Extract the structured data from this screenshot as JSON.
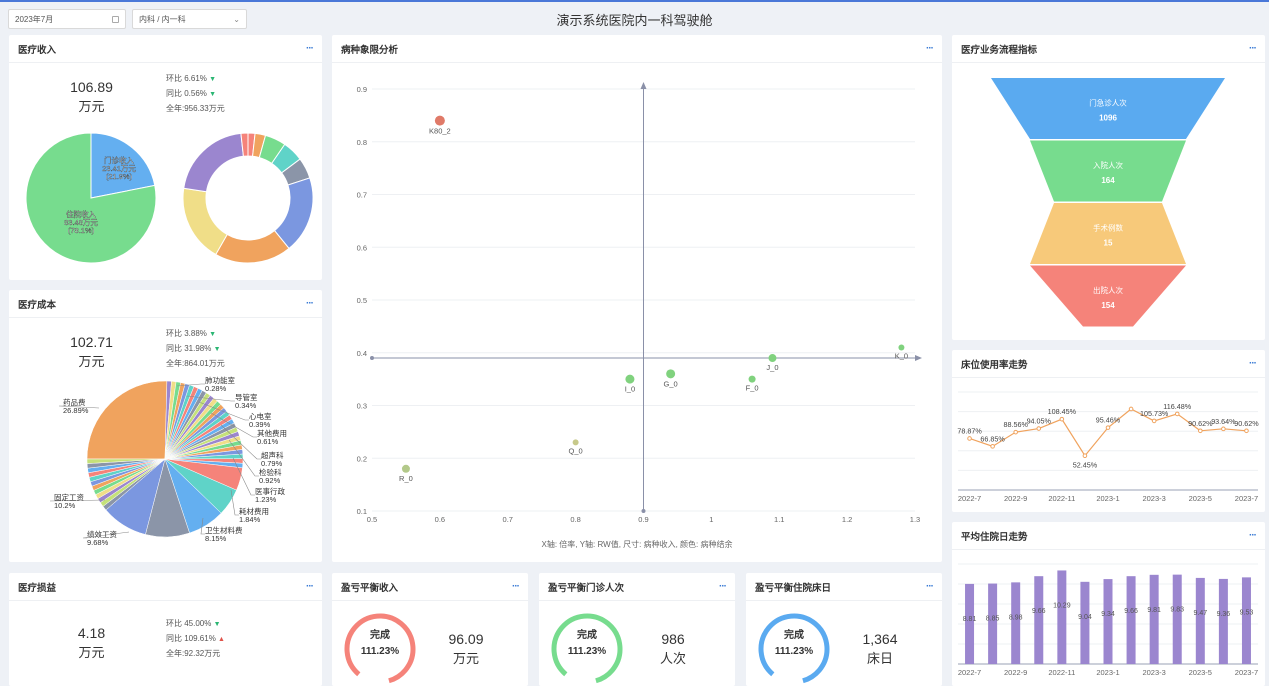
{
  "header": {
    "date": "2023年7月",
    "dept": "内科 / 内一科",
    "title": "演示系统医院内一科驾驶舱"
  },
  "colors": {
    "accent": "#4a78d8",
    "down": "#2bb673",
    "up": "#e0534a"
  },
  "revenue": {
    "title": "医疗收入",
    "value": "106.89",
    "unit": "万元",
    "mom": "环比 6.61%",
    "yoy": "同比 0.56%",
    "year": "全年:956.33万元",
    "pie": [
      {
        "label": "门诊收入",
        "amount": "23.41万元",
        "pct": "(21.9%)",
        "value": 21.9,
        "color": "#64aff0"
      },
      {
        "label": "住院收入",
        "amount": "83.48万元",
        "pct": "(78.1%)",
        "value": 78.1,
        "color": "#77dc8e"
      }
    ]
  },
  "cost": {
    "title": "医疗成本",
    "value": "102.71",
    "unit": "万元",
    "mom": "环比 3.88%",
    "yoy": "同比 31.98%",
    "year": "全年:864.01万元",
    "labels": [
      {
        "name": "肺功能室",
        "pct": "0.28%"
      },
      {
        "name": "导管室",
        "pct": "0.34%"
      },
      {
        "name": "心电室",
        "pct": "0.39%"
      },
      {
        "name": "其他费用",
        "pct": "0.61%"
      },
      {
        "name": "超声科",
        "pct": "0.79%"
      },
      {
        "name": "检验科",
        "pct": "0.92%"
      },
      {
        "name": "医事行政",
        "pct": "1.23%"
      },
      {
        "name": "耗材费用",
        "pct": "1.84%"
      },
      {
        "name": "卫生材料费",
        "pct": "8.15%"
      },
      {
        "name": "绩效工资",
        "pct": "9.68%"
      },
      {
        "name": "固定工资",
        "pct": "10.2%"
      },
      {
        "name": "药品费",
        "pct": "26.89%"
      }
    ]
  },
  "profit": {
    "title": "医疗损益",
    "value": "4.18",
    "unit": "万元",
    "mom": "环比 45.00%",
    "yoy": "同比 109.61%",
    "year": "全年:92.32万元"
  },
  "scatter": {
    "title": "病种象限分析",
    "caption": "X轴: 倍率,  Y轴: RW值,  尺寸: 病种收入,  颜色: 病种结余"
  },
  "chart_data": [
    {
      "type": "scatter",
      "title": "病种象限分析",
      "xlim": [
        0.5,
        1.3
      ],
      "ylim": [
        0.1,
        0.9
      ],
      "xticks": [
        "0.5",
        "0.6",
        "0.7",
        "0.8",
        "0.9",
        "1",
        "1.1",
        "1.2",
        "1.3"
      ],
      "yticks": [
        "0.1",
        "0.2",
        "0.3",
        "0.4",
        "0.5",
        "0.6",
        "0.7",
        "0.8",
        "0.9"
      ],
      "quadrant_origin": [
        0.9,
        0.39
      ],
      "points": [
        {
          "name": "K80_2",
          "x": 0.6,
          "y": 0.84,
          "size": 5,
          "color": "#e07a68"
        },
        {
          "name": "K_0",
          "x": 1.28,
          "y": 0.41,
          "size": 3,
          "color": "#80d27e"
        },
        {
          "name": "J_0",
          "x": 1.09,
          "y": 0.39,
          "size": 4,
          "color": "#80d27e"
        },
        {
          "name": "G_0",
          "x": 0.94,
          "y": 0.36,
          "size": 4.5,
          "color": "#80d27e"
        },
        {
          "name": "I_0",
          "x": 0.88,
          "y": 0.35,
          "size": 4.5,
          "color": "#80d27e"
        },
        {
          "name": "F_0",
          "x": 1.06,
          "y": 0.35,
          "size": 3.5,
          "color": "#80d27e"
        },
        {
          "name": "Q_0",
          "x": 0.8,
          "y": 0.23,
          "size": 3,
          "color": "#c7c98a"
        },
        {
          "name": "R_0",
          "x": 0.55,
          "y": 0.18,
          "size": 4,
          "color": "#b3c98a"
        }
      ]
    },
    {
      "type": "funnel",
      "title": "医疗业务流程指标",
      "stages": [
        {
          "label": "门急诊人次",
          "value": "1096",
          "color": "#5aaaf0"
        },
        {
          "label": "入院人次",
          "value": "164",
          "color": "#77dc8e"
        },
        {
          "label": "手术例数",
          "value": "15",
          "color": "#f7c97a"
        },
        {
          "label": "出院人次",
          "value": "154",
          "color": "#f5837a"
        }
      ]
    },
    {
      "type": "line",
      "title": "床位使用率走势",
      "categories": [
        "2022-7",
        "2022-8",
        "2022-9",
        "2022-10",
        "2022-11",
        "2022-12",
        "2023-1",
        "2023-2",
        "2023-3",
        "2023-4",
        "2023-5",
        "2023-6",
        "2023-7"
      ],
      "xticks": [
        "2022-7",
        "2022-9",
        "2022-11",
        "2023-1",
        "2023-3",
        "2023-5",
        "2023-7"
      ],
      "values": [
        78.87,
        66.85,
        88.56,
        94.05,
        108.45,
        52.45,
        95.46,
        124,
        105.73,
        116.48,
        90.62,
        93.64,
        90.62
      ],
      "labels": [
        "78.87%",
        "66.85%",
        "88.56%",
        "94.05%",
        "108.45%",
        "52.45%",
        "95.46%",
        "",
        "105.73%",
        "116.48%",
        "90.62%",
        "93.64%",
        "90.62%"
      ],
      "color": "#f0a35e"
    },
    {
      "type": "bar",
      "title": "平均住院日走势",
      "categories": [
        "2022-7",
        "2022-8",
        "2022-9",
        "2022-10",
        "2022-11",
        "2022-12",
        "2023-1",
        "2023-2",
        "2023-3",
        "2023-4",
        "2023-5",
        "2023-6",
        "2023-7"
      ],
      "xticks": [
        "2022-7",
        "2022-9",
        "2022-11",
        "2023-1",
        "2023-3",
        "2023-5",
        "2023-7"
      ],
      "values": [
        8.81,
        8.85,
        8.98,
        9.66,
        10.29,
        9.04,
        9.34,
        9.66,
        9.81,
        9.83,
        9.47,
        9.36,
        9.53
      ],
      "labels": [
        "8.81",
        "8.85",
        "8.98",
        "9.66",
        "10.29",
        "9.04",
        "9.34",
        "9.66",
        "9.81",
        "9.83",
        "9.47",
        "9.36",
        "9.53"
      ],
      "color": "#9b86cf"
    }
  ],
  "funnel_title": "医疗业务流程指标",
  "bed_title": "床位使用率走势",
  "stay_title": "平均住院日走势",
  "breakeven": [
    {
      "title": "盈亏平衡收入",
      "status": "完成",
      "pct": "111.23%",
      "value": "96.09",
      "unit": "万元",
      "color": "#f5837a"
    },
    {
      "title": "盈亏平衡门诊人次",
      "status": "完成",
      "pct": "111.23%",
      "value": "986",
      "unit": "人次",
      "color": "#77dc8e"
    },
    {
      "title": "盈亏平衡住院床日",
      "status": "完成",
      "pct": "111.23%",
      "value": "1,364",
      "unit": "床日",
      "color": "#5aaaf0"
    }
  ],
  "more": "···"
}
